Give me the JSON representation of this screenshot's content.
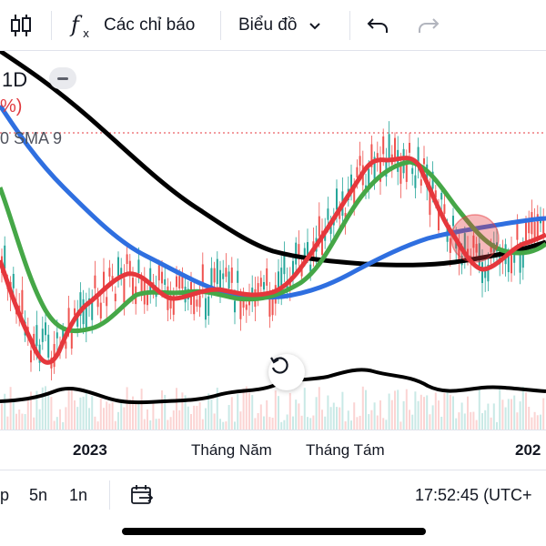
{
  "toolbar": {
    "indicators_label": "Các chỉ báo",
    "chart_label": "Biểu đồ"
  },
  "legend": {
    "interval": "1D",
    "change_fragment": "%)",
    "sma_fragment": "0 SMA 9"
  },
  "colors": {
    "sma_red": "#e5373c",
    "sma_green": "#45a747",
    "sma_blue": "#2f6fe0",
    "sma_black": "#000000",
    "candle_up": "#26a69a",
    "candle_down": "#ef5350"
  },
  "xaxis": {
    "ticks": [
      {
        "label": "2023",
        "bold": true
      },
      {
        "label": "Tháng Năm",
        "bold": false
      },
      {
        "label": "Tháng Tám",
        "bold": false
      },
      {
        "label": "202",
        "bold": true
      }
    ]
  },
  "bottom_bar": {
    "range_p": "p",
    "range_5y": "5n",
    "range_1y": "1n",
    "clock": "17:52:45 (UTC+"
  },
  "icons": {
    "candles": "candlestick-icon",
    "indicators": "function-icon",
    "chart_dropdown": "chevron-down-icon",
    "undo": "undo-icon",
    "redo": "redo-icon",
    "reset": "reset-icon",
    "goto": "goto-date-icon"
  }
}
